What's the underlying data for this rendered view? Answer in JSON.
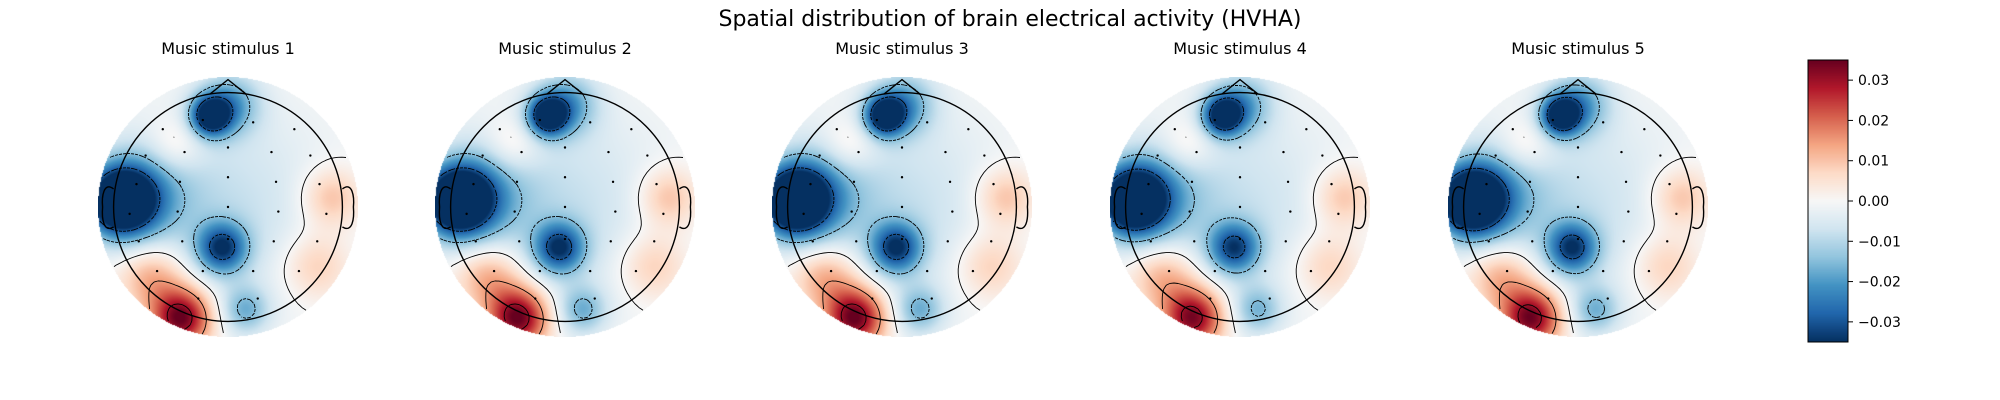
{
  "chart_data": {
    "type": "heatmap",
    "subtype": "eeg-topomap",
    "title": "Spatial distribution of brain electrical activity (HVHA)",
    "colormap": "RdBu_r",
    "colors": {
      "low": "#08306b",
      "mid": "#f7f7f7",
      "high": "#67001f"
    },
    "colorbar": {
      "range": [
        -0.035,
        0.035
      ],
      "ticks": [
        "0.03",
        "0.02",
        "0.01",
        "0.00",
        "−0.01",
        "−0.02",
        "−0.03"
      ],
      "tick_values": [
        0.03,
        0.02,
        0.01,
        0.0,
        -0.01,
        -0.02,
        -0.03
      ]
    },
    "contour_levels": [
      -0.03,
      -0.015,
      0.0,
      0.015,
      0.03
    ],
    "grid": false,
    "maps": [
      {
        "title": "Music stimulus 1",
        "scale": 1.0
      },
      {
        "title": "Music stimulus 2",
        "scale": 1.0
      },
      {
        "title": "Music stimulus 3",
        "scale": 1.0
      },
      {
        "title": "Music stimulus 4",
        "scale": 0.95
      },
      {
        "title": "Music stimulus 5",
        "scale": 0.98
      }
    ],
    "sources": [
      {
        "pos": [
          -0.92,
          0.05
        ],
        "amp": -0.05,
        "sigma": 0.2
      },
      {
        "pos": [
          -0.72,
          0.12
        ],
        "amp": -0.015,
        "sigma": 0.3
      },
      {
        "pos": [
          -0.15,
          0.78
        ],
        "amp": -0.038,
        "sigma": 0.12
      },
      {
        "pos": [
          0.02,
          0.88
        ],
        "amp": -0.018,
        "sigma": 0.18
      },
      {
        "pos": [
          -0.05,
          -0.35
        ],
        "amp": -0.03,
        "sigma": 0.15
      },
      {
        "pos": [
          0.15,
          -0.88
        ],
        "amp": -0.015,
        "sigma": 0.14
      },
      {
        "pos": [
          -0.4,
          -0.95
        ],
        "amp": 0.036,
        "sigma": 0.18
      },
      {
        "pos": [
          -0.65,
          -0.6
        ],
        "amp": 0.015,
        "sigma": 0.2
      },
      {
        "pos": [
          0.75,
          -0.5
        ],
        "amp": 0.01,
        "sigma": 0.2
      },
      {
        "pos": [
          0.88,
          0.08
        ],
        "amp": 0.012,
        "sigma": 0.18
      },
      {
        "pos": [
          -0.45,
          0.52
        ],
        "amp": 0.008,
        "sigma": 0.17
      },
      {
        "pos": [
          0.0,
          0.0
        ],
        "amp": -0.008,
        "sigma": 0.6
      }
    ],
    "electrodes": [
      [
        -0.57,
        0.68
      ],
      [
        -0.22,
        0.76
      ],
      [
        0.22,
        0.74
      ],
      [
        0.58,
        0.68
      ],
      [
        -0.72,
        0.45
      ],
      [
        -0.38,
        0.48
      ],
      [
        0.0,
        0.52
      ],
      [
        0.38,
        0.48
      ],
      [
        0.72,
        0.45
      ],
      [
        -0.8,
        0.2
      ],
      [
        -0.42,
        0.22
      ],
      [
        0.0,
        0.26
      ],
      [
        0.42,
        0.22
      ],
      [
        0.8,
        0.2
      ],
      [
        -0.86,
        -0.06
      ],
      [
        -0.44,
        -0.04
      ],
      [
        0.0,
        0.0
      ],
      [
        0.44,
        -0.04
      ],
      [
        0.86,
        -0.06
      ],
      [
        -0.78,
        -0.3
      ],
      [
        -0.4,
        -0.3
      ],
      [
        0.0,
        -0.28
      ],
      [
        0.4,
        -0.3
      ],
      [
        0.78,
        -0.3
      ],
      [
        -0.62,
        -0.56
      ],
      [
        -0.22,
        -0.56
      ],
      [
        0.22,
        -0.56
      ],
      [
        0.62,
        -0.56
      ],
      [
        -0.26,
        -0.8
      ],
      [
        0.26,
        -0.8
      ]
    ]
  }
}
